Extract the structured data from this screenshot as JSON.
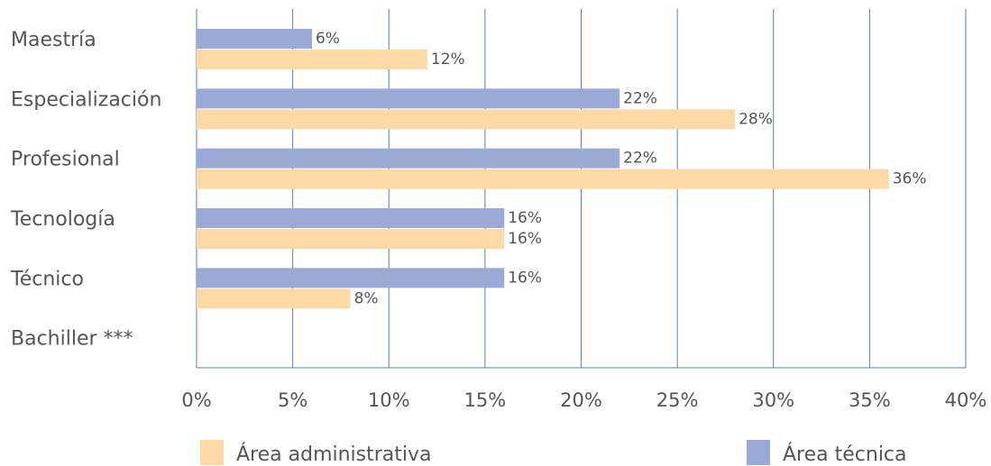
{
  "chart_data": {
    "type": "barh",
    "categories": [
      "Maestría",
      "Especialización",
      "Profesional",
      "Tecnología",
      "Técnico",
      "Bachiller ***"
    ],
    "series": [
      {
        "name": "Área administrativa",
        "color": "#fdd9a8",
        "values": [
          12,
          28,
          36,
          16,
          8,
          null
        ],
        "value_labels": [
          "12%",
          "28%",
          "36%",
          "16%",
          "8%",
          null
        ]
      },
      {
        "name": "Área técnica",
        "color": "#9aa9d6",
        "values": [
          6,
          22,
          22,
          16,
          16,
          null
        ],
        "value_labels": [
          "6%",
          "22%",
          "22%",
          "16%",
          "16%",
          null
        ]
      }
    ],
    "xlim": [
      0,
      40
    ],
    "xticks": [
      {
        "value": 0,
        "label": "0%"
      },
      {
        "value": 5,
        "label": "5%"
      },
      {
        "value": 10,
        "label": "10%"
      },
      {
        "value": 15,
        "label": "15%"
      },
      {
        "value": 20,
        "label": "20%"
      },
      {
        "value": 25,
        "label": "25%"
      },
      {
        "value": 30,
        "label": "30%"
      },
      {
        "value": 35,
        "label": "35%"
      },
      {
        "value": 40,
        "label": "40%"
      }
    ],
    "grid": true,
    "legend": "bottom"
  }
}
